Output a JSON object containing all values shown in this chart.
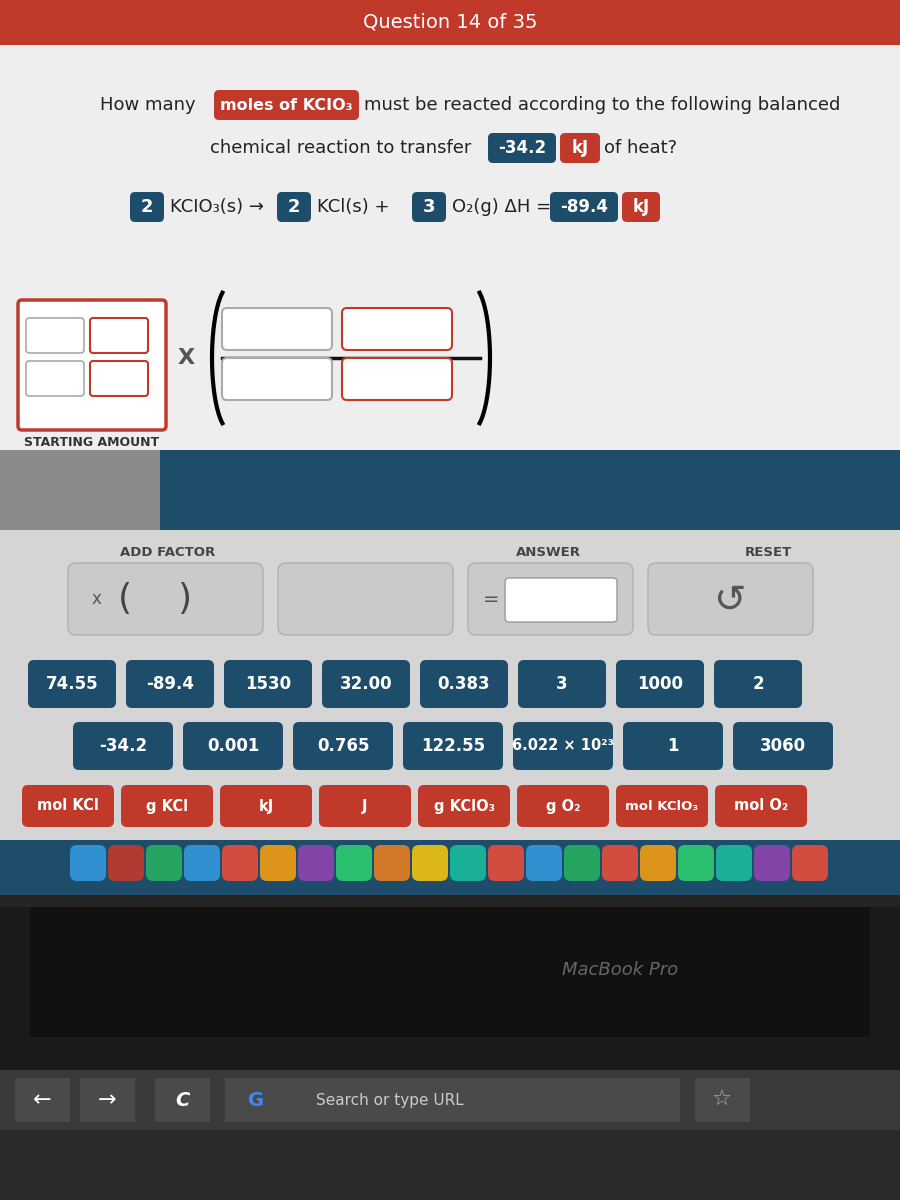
{
  "title": "Question 14 of 35",
  "title_bg": "#c0392b",
  "title_color": "#ffffff",
  "bg_color": "#d8d4d0",
  "content_bg": "#ebebeb",
  "dark_panel_bg": "#1e4d6b",
  "lower_panel_bg": "#d0d0d0",
  "starting_amount_label": "STARTING AMOUNT",
  "add_factor_label": "ADD FACTOR",
  "answer_label": "ANSWER",
  "reset_label": "RESET",
  "numeric_buttons_row1": [
    "74.55",
    "-89.4",
    "1530",
    "32.00",
    "0.383",
    "3",
    "1000",
    "2"
  ],
  "numeric_buttons_row2": [
    "-34.2",
    "0.001",
    "0.765",
    "122.55",
    "6.022 × 10²³",
    "1",
    "3060"
  ],
  "unit_buttons": [
    "mol KCl",
    "g KCl",
    "kJ",
    "J",
    "g KClO₃",
    "g O₂",
    "mol KClO₃",
    "mol O₂"
  ],
  "dark_btn_color": "#1e4d6b",
  "red_btn_color": "#c0392b",
  "light_btn_color": "#d0d0d0",
  "macbook_color": "#1a1a1a",
  "dock_color": "#1e4d6b",
  "keyboard_color": "#3a3a3a",
  "browser_bar_color": "#2a2a2a"
}
